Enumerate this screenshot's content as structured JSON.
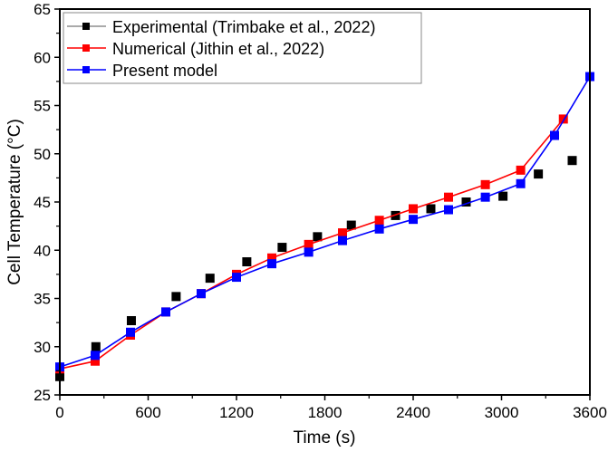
{
  "chart_data": {
    "type": "line",
    "title": "",
    "xlabel": "Time (s)",
    "ylabel": "Cell Temperature (°C)",
    "xlim": [
      0,
      3600
    ],
    "ylim": [
      25,
      65
    ],
    "xticks": [
      "0",
      "600",
      "1200",
      "1800",
      "2400",
      "3000",
      "3600"
    ],
    "yticks": [
      "25",
      "30",
      "35",
      "40",
      "45",
      "50",
      "55",
      "60",
      "65"
    ],
    "grid": false,
    "legend_position": "top-left",
    "series": [
      {
        "name": "Experimental (Trimbake et al., 2022)",
        "color": "#000000",
        "style": "markers",
        "x": [
          0,
          245,
          486,
          790,
          1020,
          1270,
          1510,
          1750,
          1980,
          2280,
          2520,
          2760,
          3010,
          3250,
          3480
        ],
        "y": [
          26.9,
          30.0,
          32.7,
          35.2,
          37.1,
          38.8,
          40.3,
          41.4,
          42.6,
          43.6,
          44.3,
          45.0,
          45.6,
          47.9,
          49.3
        ]
      },
      {
        "name": "Numerical (Jithin et al., 2022)",
        "color": "#ff0000",
        "style": "line+markers",
        "x": [
          0,
          240,
          480,
          720,
          960,
          1200,
          1440,
          1690,
          1920,
          2170,
          2400,
          2640,
          2890,
          3130,
          3420
        ],
        "y": [
          27.7,
          28.5,
          31.2,
          33.6,
          35.5,
          37.5,
          39.2,
          40.6,
          41.8,
          43.1,
          44.3,
          45.5,
          46.8,
          48.3,
          53.6
        ]
      },
      {
        "name": "Present model",
        "color": "#0000ff",
        "style": "line+markers",
        "x": [
          0,
          240,
          480,
          720,
          960,
          1200,
          1440,
          1690,
          1920,
          2170,
          2400,
          2640,
          2890,
          3130,
          3360,
          3600
        ],
        "y": [
          27.9,
          29.1,
          31.5,
          33.6,
          35.5,
          37.2,
          38.6,
          39.8,
          41.0,
          42.2,
          43.2,
          44.2,
          45.5,
          46.9,
          51.9,
          58.0
        ]
      }
    ]
  }
}
